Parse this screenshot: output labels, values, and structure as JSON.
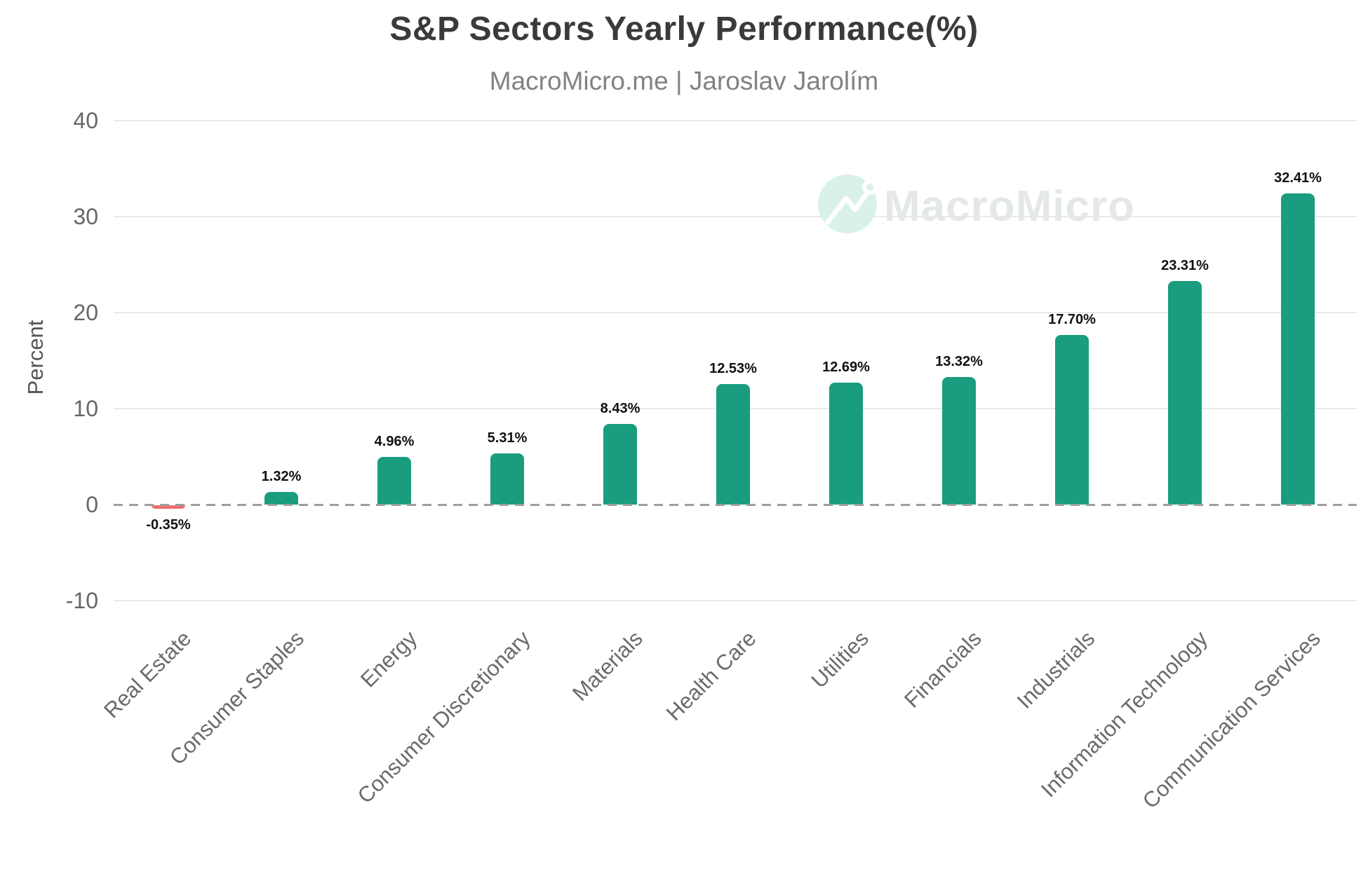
{
  "chart_data": {
    "type": "bar",
    "title": "S&P Sectors Yearly Performance(%)",
    "subtitle": "MacroMicro.me | Jaroslav Jarolím",
    "ylabel": "Percent",
    "ylim": [
      -10,
      40
    ],
    "yticks": [
      40,
      30,
      20,
      10,
      0,
      -10
    ],
    "grid": true,
    "legend": false,
    "categories": [
      "Real Estate",
      "Consumer Staples",
      "Energy",
      "Consumer Discretionary",
      "Materials",
      "Health Care",
      "Utilities",
      "Financials",
      "Industrials",
      "Information Technology",
      "Communication Services"
    ],
    "values": [
      -0.35,
      1.32,
      4.96,
      5.31,
      8.43,
      12.53,
      12.69,
      13.32,
      17.7,
      23.31,
      32.41
    ],
    "value_labels": [
      "-0.35%",
      "1.32%",
      "4.96%",
      "5.31%",
      "8.43%",
      "12.53%",
      "12.69%",
      "13.32%",
      "17.70%",
      "23.31%",
      "32.41%"
    ],
    "colors": {
      "positive_bar": "#199d7e",
      "negative_bar": "#ee6f6e",
      "grid": "#e9e9e9",
      "zero_line": "#9e9e9e",
      "title": "#3a3a3a",
      "subtitle": "#828282",
      "axis_text": "#666666",
      "category_text": "#6b6b6b",
      "value_text": "#111111"
    }
  },
  "watermark": {
    "text": "MacroMicro",
    "icon": "macromicro-logo-icon",
    "circle_color": "#d9f1ea",
    "text_color": "#e4e9e7"
  }
}
